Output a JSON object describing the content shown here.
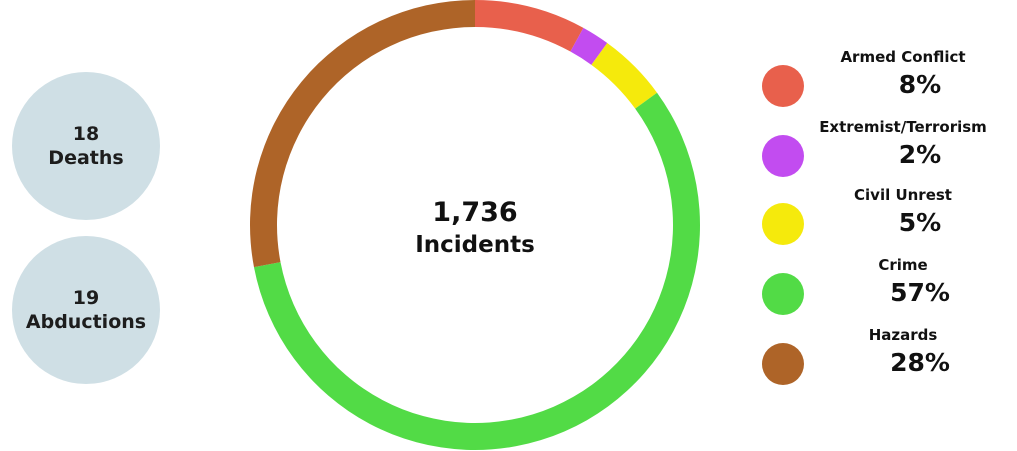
{
  "stats": [
    {
      "value": "18",
      "label": "Deaths"
    },
    {
      "value": "19",
      "label": "Abductions"
    }
  ],
  "chart_data": {
    "type": "pie",
    "donut": true,
    "center": {
      "value": "1,736",
      "label": "Incidents"
    },
    "slices": [
      {
        "label": "Armed Conflict",
        "value": 8,
        "display": "8%",
        "color": "#e8604c"
      },
      {
        "label": "Extremist/Terrorism",
        "value": 2,
        "display": "2%",
        "color": "#c24cf0"
      },
      {
        "label": "Civil Unrest",
        "value": 5,
        "display": "5%",
        "color": "#f5ea0c"
      },
      {
        "label": "Crime",
        "value": 57,
        "display": "57%",
        "color": "#52db46"
      },
      {
        "label": "Hazards",
        "value": 28,
        "display": "28%",
        "color": "#ae6428"
      }
    ],
    "legend": "right"
  }
}
